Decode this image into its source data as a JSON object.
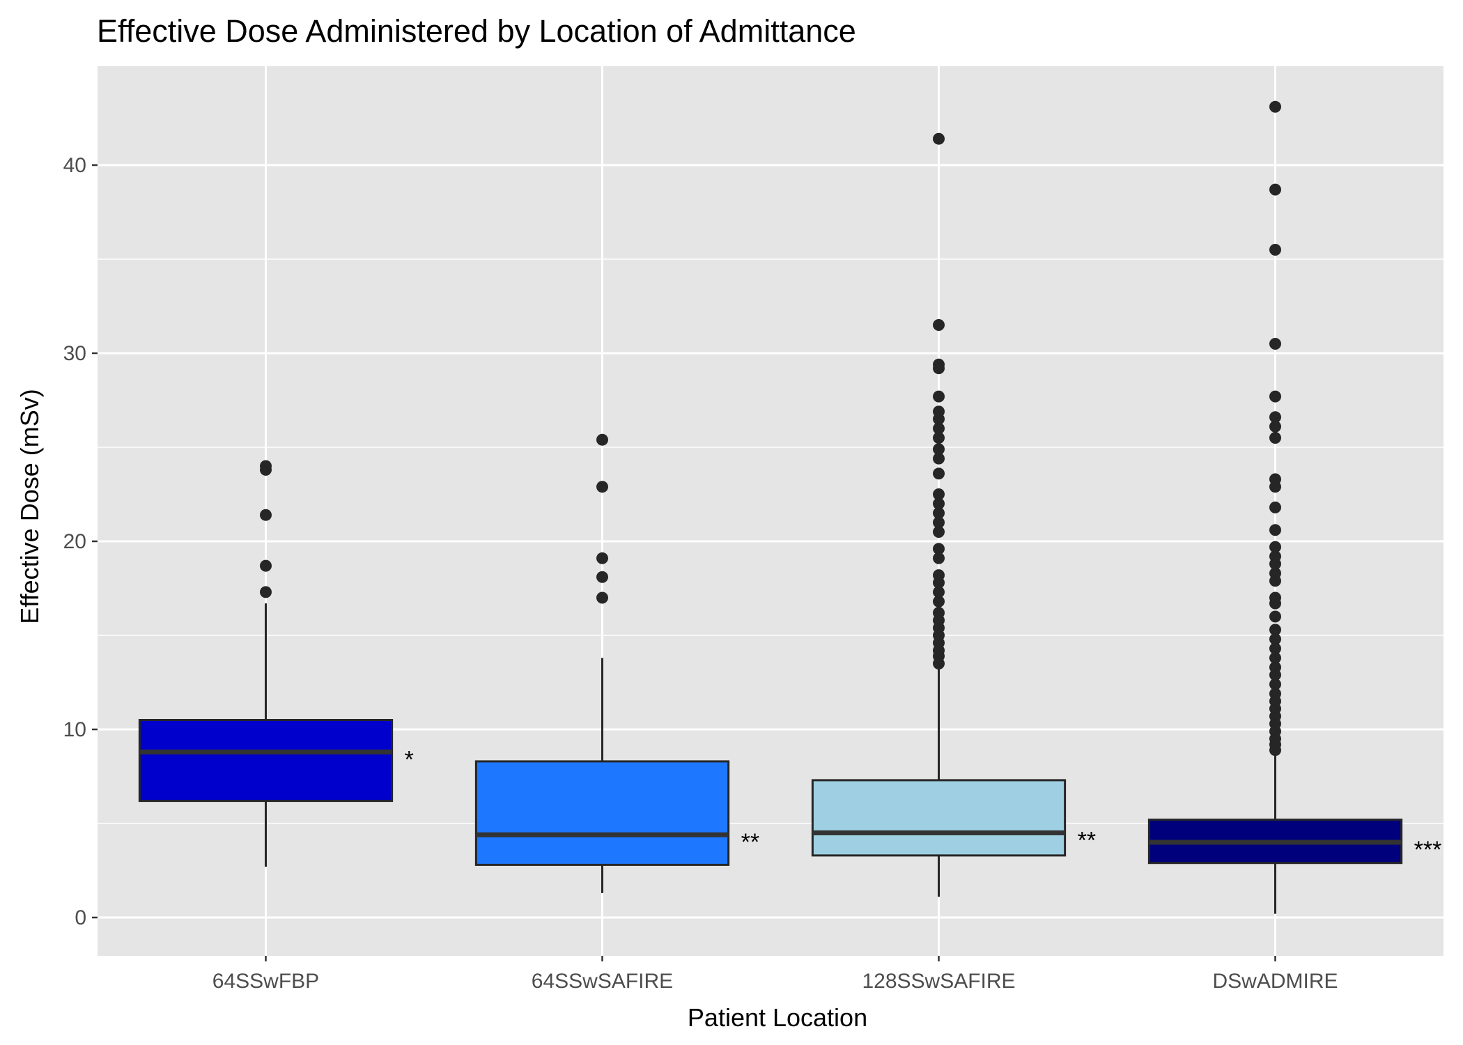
{
  "chart_data": {
    "type": "boxplot",
    "title": "Effective Dose Administered by Location of Admittance",
    "xlabel": "Patient Location",
    "ylabel": "Effective Dose (mSv)",
    "ylim": [
      -2,
      45
    ],
    "yticks": [
      0,
      10,
      20,
      30,
      40
    ],
    "y_minor_ticks": [
      5,
      15,
      25,
      35
    ],
    "grid": true,
    "legend": "none",
    "background_color": "#e5e5e5",
    "grid_color": "#ffffff",
    "outline_color": "#262626",
    "categories": [
      "64SSwFBP",
      "64SSwSAFIRE",
      "128SSwSAFIRE",
      "DSwADMIRE"
    ],
    "boxes": [
      {
        "category": "64SSwFBP",
        "color": "#0000cd",
        "whisker_low": 2.7,
        "q1": 6.2,
        "median": 8.8,
        "q3": 10.5,
        "whisker_high": 16.7,
        "outliers": [
          17.3,
          18.7,
          21.4,
          23.8,
          24.0
        ],
        "significance": "*"
      },
      {
        "category": "64SSwSAFIRE",
        "color": "#1e78ff",
        "whisker_low": 1.3,
        "q1": 2.8,
        "median": 4.4,
        "q3": 8.3,
        "whisker_high": 13.8,
        "outliers": [
          17.0,
          18.1,
          19.1,
          22.9,
          25.4
        ],
        "significance": "**"
      },
      {
        "category": "128SSwSAFIRE",
        "color": "#9ecfe3",
        "whisker_low": 1.1,
        "q1": 3.3,
        "median": 4.5,
        "q3": 7.3,
        "whisker_high": 13.3,
        "outliers": [
          13.5,
          13.9,
          14.2,
          14.6,
          15.0,
          15.4,
          15.8,
          16.2,
          16.8,
          17.3,
          17.8,
          18.2,
          19.1,
          19.6,
          20.5,
          21.0,
          21.5,
          22.0,
          22.5,
          23.6,
          24.4,
          24.9,
          25.5,
          26.0,
          26.5,
          26.9,
          27.7,
          29.2,
          29.4,
          31.5,
          41.4
        ],
        "significance": "**"
      },
      {
        "category": "DSwADMIRE",
        "color": "#00007d",
        "whisker_low": 0.2,
        "q1": 2.9,
        "median": 4.0,
        "q3": 5.2,
        "whisker_high": 8.6,
        "outliers": [
          8.9,
          9.2,
          9.5,
          9.9,
          10.3,
          10.7,
          11.1,
          11.5,
          11.9,
          12.4,
          12.9,
          13.3,
          13.8,
          14.3,
          14.8,
          15.3,
          16.0,
          16.7,
          17.0,
          17.9,
          18.3,
          18.8,
          19.2,
          19.7,
          20.6,
          21.8,
          22.9,
          23.3,
          25.5,
          26.1,
          26.6,
          27.7,
          30.5,
          35.5,
          38.7,
          43.1
        ],
        "significance": "***"
      }
    ]
  }
}
